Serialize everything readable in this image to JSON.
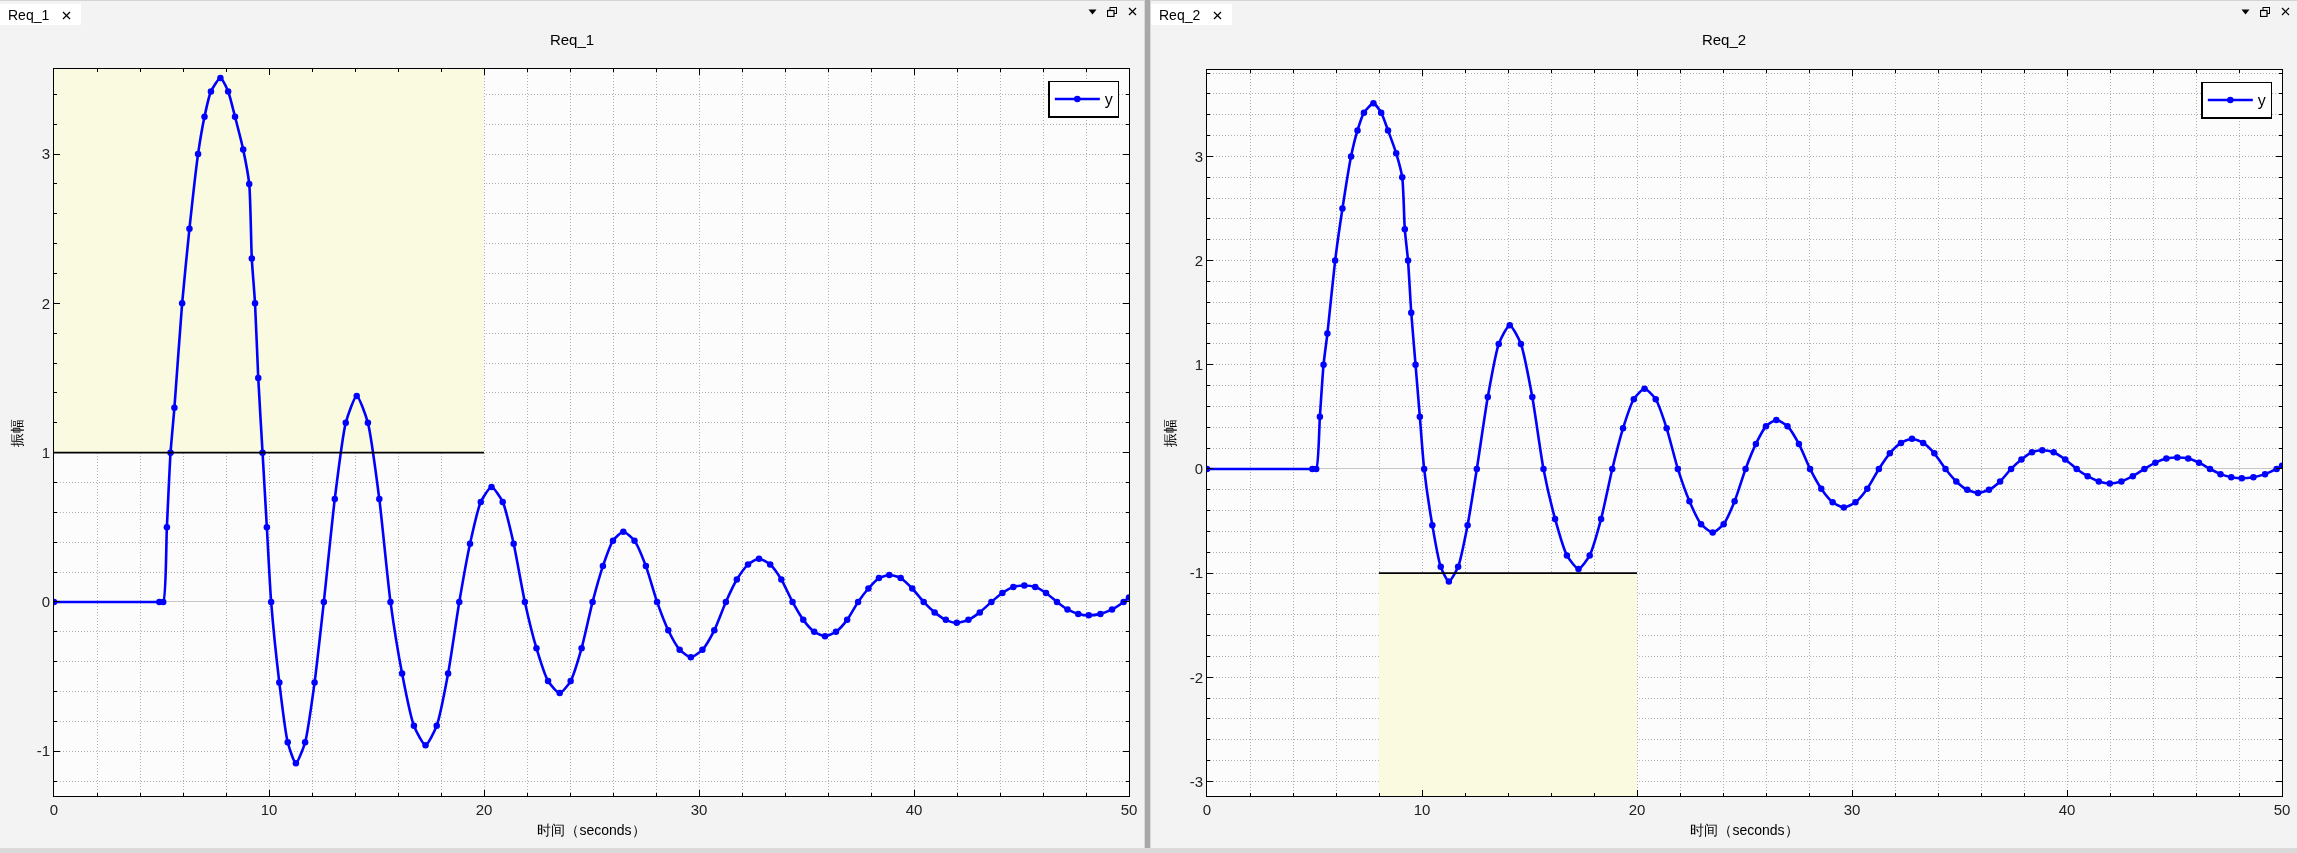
{
  "chart_data": [
    {
      "type": "line",
      "title": "Req_1",
      "xlabel": "时间（seconds）",
      "ylabel": "振幅",
      "xlim": [
        0,
        50
      ],
      "xticks": [
        0,
        10,
        20,
        30,
        40,
        50
      ],
      "ylim": [
        -1.3,
        3.57
      ],
      "yticks": [
        -1,
        0,
        1,
        2,
        3
      ],
      "grid": true,
      "legend": "top right",
      "marker": "circle",
      "x": [
        0,
        4.9,
        5.08,
        5.25,
        5.42,
        5.6,
        5.96,
        6.3,
        6.7,
        7.0,
        7.3,
        7.74,
        8.1,
        8.42,
        8.8,
        9.08,
        9.2,
        9.35,
        9.5,
        9.7,
        9.9,
        10.1,
        10.48,
        10.87,
        11.25,
        11.68,
        12.12,
        12.55,
        13.06,
        13.57,
        14.08,
        14.6,
        15.13,
        15.65,
        16.19,
        16.74,
        17.28,
        17.8,
        18.33,
        18.85,
        19.35,
        19.85,
        20.35,
        20.87,
        21.38,
        21.9,
        22.44,
        22.98,
        23.52,
        24.03,
        24.54,
        25.05,
        25.53,
        26.0,
        26.48,
        27.0,
        27.53,
        28.05,
        28.57,
        29.1,
        29.62,
        30.16,
        30.71,
        31.25,
        31.76,
        32.28,
        32.79,
        33.31,
        33.83,
        34.35,
        34.85,
        35.36,
        35.86,
        36.37,
        36.89,
        37.4,
        37.88,
        38.37,
        38.85,
        39.38,
        39.92,
        40.45,
        40.96,
        41.48,
        41.99,
        42.53,
        43.06,
        43.6,
        44.11,
        44.62,
        45.13,
        45.64,
        46.14,
        46.65,
        47.14,
        47.64,
        48.13,
        48.67,
        49.21,
        49.75,
        50
      ],
      "series": [
        {
          "name": "y",
          "color": "#0000ff",
          "values": [
            0,
            0,
            0,
            0.5,
            1.0,
            1.3,
            2.0,
            2.5,
            3.0,
            3.25,
            3.42,
            3.51,
            3.42,
            3.25,
            3.03,
            2.8,
            2.3,
            2.0,
            1.5,
            1.0,
            0.5,
            0,
            -0.54,
            -0.94,
            -1.08,
            -0.94,
            -0.54,
            0,
            0.69,
            1.2,
            1.38,
            1.2,
            0.69,
            0,
            -0.48,
            -0.83,
            -0.96,
            -0.83,
            -0.48,
            0,
            0.39,
            0.67,
            0.77,
            0.67,
            0.39,
            0,
            -0.31,
            -0.53,
            -0.61,
            -0.53,
            -0.31,
            0,
            0.24,
            0.41,
            0.47,
            0.41,
            0.24,
            0,
            -0.19,
            -0.32,
            -0.37,
            -0.32,
            -0.19,
            0,
            0.15,
            0.25,
            0.29,
            0.25,
            0.15,
            0,
            -0.12,
            -0.2,
            -0.23,
            -0.2,
            -0.12,
            0,
            0.09,
            0.16,
            0.18,
            0.16,
            0.09,
            0,
            -0.07,
            -0.12,
            -0.14,
            -0.12,
            -0.07,
            0,
            0.06,
            0.1,
            0.11,
            0.1,
            0.06,
            0,
            -0.05,
            -0.08,
            -0.09,
            -0.08,
            -0.05,
            0,
            0.03
          ]
        },
        {
          "color": "#000000",
          "marker": "none",
          "x": [
            0,
            20
          ],
          "values": [
            1,
            1
          ],
          "lower": [
            1,
            1
          ],
          "upper": [
            3.57,
            3.57
          ]
        }
      ]
    },
    {
      "type": "line",
      "title": "Req_2",
      "xlabel": "时间（seconds）",
      "ylabel": "振幅",
      "xlim": [
        0,
        50
      ],
      "xticks": [
        0,
        10,
        20,
        30,
        40,
        50
      ],
      "ylim": [
        -3.14,
        3.83
      ],
      "yticks": [
        -3,
        -2,
        -1,
        0,
        1,
        2,
        3
      ],
      "grid": true,
      "legend": "top right",
      "marker": "circle",
      "x": [
        0,
        4.9,
        5.08,
        5.25,
        5.42,
        5.6,
        5.96,
        6.3,
        6.7,
        7.0,
        7.3,
        7.74,
        8.1,
        8.42,
        8.8,
        9.08,
        9.2,
        9.35,
        9.5,
        9.7,
        9.9,
        10.1,
        10.48,
        10.87,
        11.25,
        11.68,
        12.12,
        12.55,
        13.06,
        13.57,
        14.08,
        14.6,
        15.13,
        15.65,
        16.19,
        16.74,
        17.28,
        17.8,
        18.33,
        18.85,
        19.35,
        19.85,
        20.35,
        20.87,
        21.38,
        21.9,
        22.44,
        22.98,
        23.52,
        24.03,
        24.54,
        25.05,
        25.53,
        26.0,
        26.48,
        27.0,
        27.53,
        28.05,
        28.57,
        29.1,
        29.62,
        30.16,
        30.71,
        31.25,
        31.76,
        32.28,
        32.79,
        33.31,
        33.83,
        34.35,
        34.85,
        35.36,
        35.86,
        36.37,
        36.89,
        37.4,
        37.88,
        38.37,
        38.85,
        39.38,
        39.92,
        40.45,
        40.96,
        41.48,
        41.99,
        42.53,
        43.06,
        43.6,
        44.11,
        44.62,
        45.13,
        45.64,
        46.14,
        46.65,
        47.14,
        47.64,
        48.13,
        48.67,
        49.21,
        49.75,
        50
      ],
      "series": [
        {
          "name": "y",
          "color": "#0000ff",
          "values": [
            0,
            0,
            0,
            0.5,
            1.0,
            1.3,
            2.0,
            2.5,
            3.0,
            3.25,
            3.42,
            3.51,
            3.42,
            3.25,
            3.03,
            2.8,
            2.3,
            2.0,
            1.5,
            1.0,
            0.5,
            0,
            -0.54,
            -0.94,
            -1.08,
            -0.94,
            -0.54,
            0,
            0.69,
            1.2,
            1.38,
            1.2,
            0.69,
            0,
            -0.48,
            -0.83,
            -0.96,
            -0.83,
            -0.48,
            0,
            0.39,
            0.67,
            0.77,
            0.67,
            0.39,
            0,
            -0.31,
            -0.53,
            -0.61,
            -0.53,
            -0.31,
            0,
            0.24,
            0.41,
            0.47,
            0.41,
            0.24,
            0,
            -0.19,
            -0.32,
            -0.37,
            -0.32,
            -0.19,
            0,
            0.15,
            0.25,
            0.29,
            0.25,
            0.15,
            0,
            -0.12,
            -0.2,
            -0.23,
            -0.2,
            -0.12,
            0,
            0.09,
            0.16,
            0.18,
            0.16,
            0.09,
            0,
            -0.07,
            -0.12,
            -0.14,
            -0.12,
            -0.07,
            0,
            0.06,
            0.1,
            0.11,
            0.1,
            0.06,
            0,
            -0.05,
            -0.08,
            -0.09,
            -0.08,
            -0.05,
            0,
            0.03
          ]
        },
        {
          "color": "#000000",
          "marker": "none",
          "x": [
            8,
            20
          ],
          "values": [
            -1,
            -1
          ],
          "lower": [
            -3.14,
            -3.14
          ],
          "upper": [
            -1,
            -1
          ]
        }
      ]
    }
  ]
}
